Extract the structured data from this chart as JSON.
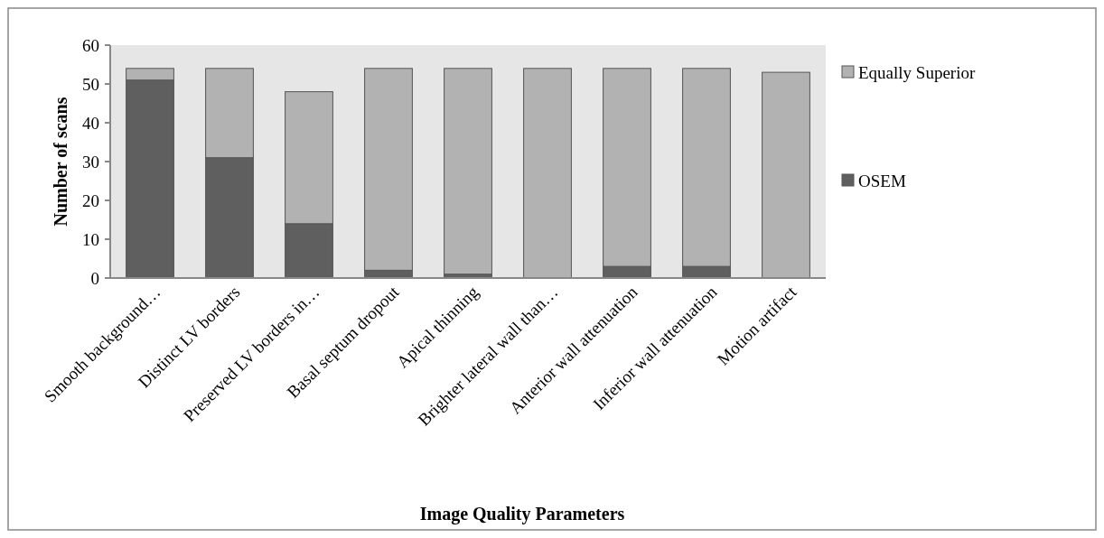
{
  "chart_data": {
    "type": "bar",
    "stacked": true,
    "xlabel": "Image Quality Parameters",
    "ylabel": "Number of scans",
    "categories": [
      "Smooth background…",
      "Distinct LV borders",
      "Preserved LV borders in…",
      "Basal septum dropout",
      "Apical thinning",
      "Brighter lateral wall than…",
      "Anterior wall attenuation",
      "Inferior wall attenuation",
      "Motion artifact"
    ],
    "series": [
      {
        "name": "OSEM",
        "color": "#5f5f5f",
        "values": [
          51,
          31,
          14,
          2,
          1,
          0,
          3,
          3,
          0
        ]
      },
      {
        "name": "Equally Superior",
        "color": "#b2b2b2",
        "values": [
          3,
          23,
          34,
          52,
          53,
          54,
          51,
          51,
          53
        ]
      }
    ],
    "ylim": [
      0,
      60
    ],
    "yticks": [
      0,
      10,
      20,
      30,
      40,
      50,
      60
    ],
    "grid": false,
    "legend": "right"
  }
}
